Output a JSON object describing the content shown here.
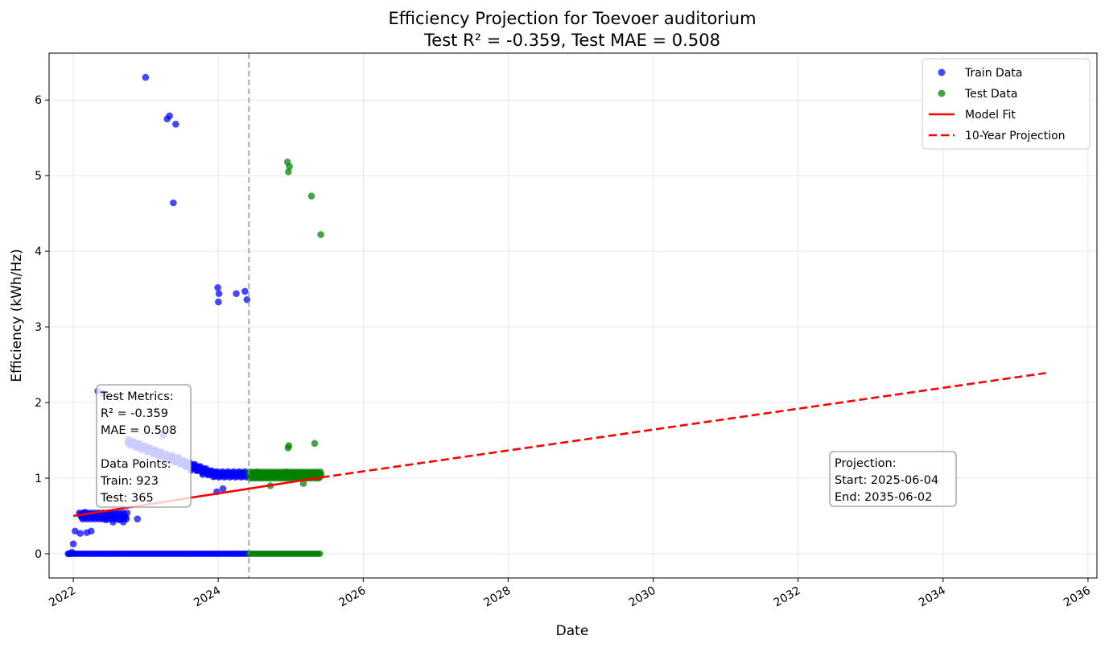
{
  "chart_data": {
    "type": "scatter",
    "title": "Efficiency Projection for Toevoer auditorium",
    "subtitle": "Test R² = -0.359, Test MAE = 0.508",
    "xlabel": "Date",
    "ylabel": "Efficiency (kWh/Hz)",
    "x_range": [
      "2021-09-01",
      "2036-02-15"
    ],
    "ylim": [
      -0.32,
      6.62
    ],
    "x_ticks": [
      "2022",
      "2024",
      "2026",
      "2028",
      "2030",
      "2032",
      "2034",
      "2036"
    ],
    "y_ticks": [
      "0",
      "1",
      "2",
      "3",
      "4",
      "5",
      "6"
    ],
    "grid": true,
    "legend_position": "top-right",
    "legend": [
      {
        "label": "Train Data",
        "kind": "marker",
        "color": "#0000ff"
      },
      {
        "label": "Test Data",
        "kind": "marker",
        "color": "#008000"
      },
      {
        "label": "Model Fit",
        "kind": "line",
        "color": "#ff0000"
      },
      {
        "label": "10-Year Projection",
        "kind": "dashed",
        "color": "#ff0000"
      }
    ],
    "split_date": "2024-06-04",
    "series": [
      {
        "name": "Train Data",
        "color": "#0000ff",
        "x": [
          "2022-12-31",
          "2023-04-19",
          "2023-05-01",
          "2023-06-01",
          "2023-05-20",
          "2023-12-30",
          "2024-01-05",
          "2024-01-02",
          "2024-04-01",
          "2024-05-15",
          "2024-05-25",
          "2022-02-15",
          "2022-03-01",
          "2022-04-10",
          "2022-05-20",
          "2022-06-15",
          "2022-07-20",
          "2022-08-20",
          "2022-09-10",
          "2022-11-20",
          "2022-10-15",
          "2022-11-01",
          "2022-12-01",
          "2023-01-15",
          "2023-02-15",
          "2023-03-20",
          "2023-04-15",
          "2023-05-15",
          "2023-06-15",
          "2023-07-20",
          "2023-08-15",
          "2023-09-15",
          "2023-10-15",
          "2023-11-15",
          "2023-12-15",
          "2024-01-15",
          "2024-02-15",
          "2024-03-15",
          "2024-04-15",
          "2024-05-20",
          "2023-12-25",
          "2024-01-25",
          "2022-05-05",
          "2022-06-01",
          "2023-04-01",
          "2022-01-10",
          "2022-02-05",
          "2022-03-10",
          "2022-04-01",
          "2021-12-10",
          "2021-12-25",
          "2022-01-01"
        ],
        "values": [
          6.3,
          5.75,
          5.79,
          5.68,
          4.64,
          3.52,
          3.44,
          3.33,
          3.44,
          3.47,
          3.36,
          0.5,
          0.55,
          0.5,
          0.48,
          0.45,
          0.42,
          0.45,
          0.42,
          0.46,
          1.5,
          1.48,
          1.45,
          1.4,
          1.35,
          1.3,
          1.3,
          1.3,
          1.28,
          1.15,
          1.1,
          1.1,
          1.05,
          1.05,
          1.08,
          1.05,
          1.05,
          1.05,
          1.05,
          1.05,
          0.82,
          0.86,
          2.15,
          2.12,
          1.57,
          0.3,
          0.27,
          0.28,
          0.3,
          0.0,
          0.02,
          0.13
        ],
        "baseline": 0.0
      },
      {
        "name": "Test Data",
        "color": "#008000",
        "x": [
          "2024-12-15",
          "2024-12-20",
          "2024-12-25",
          "2025-04-15",
          "2025-06-01",
          "2024-06-15",
          "2024-07-15",
          "2024-08-15",
          "2024-09-15",
          "2024-10-15",
          "2024-11-15",
          "2024-12-10",
          "2025-01-10",
          "2025-02-10",
          "2025-03-10",
          "2025-04-10",
          "2025-05-10",
          "2025-05-25",
          "2024-12-18",
          "2024-12-22",
          "2025-05-01",
          "2024-09-20",
          "2025-03-05"
        ],
        "values": [
          5.18,
          5.05,
          5.12,
          4.73,
          4.22,
          1.05,
          1.08,
          1.02,
          1.05,
          1.05,
          1.02,
          1.08,
          1.05,
          1.02,
          1.05,
          1.02,
          1.05,
          1.02,
          1.4,
          1.43,
          1.46,
          0.9,
          0.93
        ],
        "baseline": 0.0
      },
      {
        "name": "Model Fit",
        "color": "#ff0000",
        "x": [
          "2022-01-01",
          "2025-06-04"
        ],
        "values": [
          0.5,
          1.01
        ]
      },
      {
        "name": "10-Year Projection",
        "color": "#ff0000",
        "x": [
          "2025-06-04",
          "2035-06-02"
        ],
        "values": [
          1.01,
          2.39
        ]
      }
    ],
    "annotations": {
      "metrics_box": [
        "Test Metrics:",
        "R² = -0.359",
        "MAE = 0.508",
        "",
        "Data Points:",
        "Train: 923",
        "Test: 365"
      ],
      "projection_box": [
        "Projection:",
        "Start: 2025-06-04",
        "End: 2035-06-02"
      ]
    }
  }
}
